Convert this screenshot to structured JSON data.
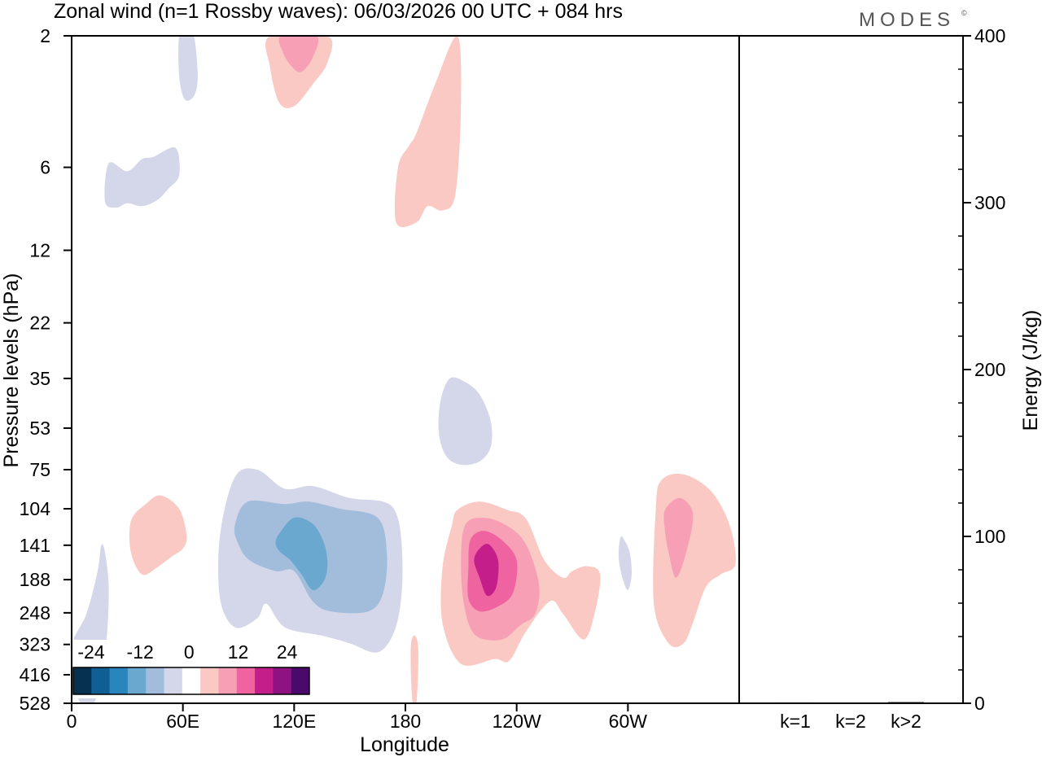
{
  "chart_data": {
    "type": "heatmap",
    "title": "Zonal wind (n=1 Rossby waves):  06/03/2026  00 UTC  + 084 hrs",
    "brand": "MODES",
    "brand_mark": "©",
    "xlabel": "Longitude",
    "ylabel": "Pressure levels (hPa)",
    "x_ticks": [
      {
        "lon": 0,
        "label": "0"
      },
      {
        "lon": 60,
        "label": "60E"
      },
      {
        "lon": 120,
        "label": "120E"
      },
      {
        "lon": 180,
        "label": "180"
      },
      {
        "lon": 240,
        "label": "120W"
      },
      {
        "lon": 300,
        "label": "60W"
      }
    ],
    "xlim": [
      0,
      360
    ],
    "pressure_levels": [
      "2",
      "6",
      "12",
      "22",
      "35",
      "53",
      "75",
      "104",
      "141",
      "188",
      "248",
      "323",
      "416",
      "528"
    ],
    "colorbar": {
      "tick_labels": [
        "-24",
        "-12",
        "0",
        "12",
        "24"
      ],
      "colors": [
        "#08304f",
        "#0f5f95",
        "#2b85bd",
        "#6aa8cf",
        "#a2bcdb",
        "#d4d6e9",
        "#ffffff",
        "#fbc9c3",
        "#f7a0b5",
        "#ef63a0",
        "#c41e8b",
        "#8e1282",
        "#4b0a6b"
      ]
    },
    "contours": [
      {
        "name": "neg-region-upper-a",
        "level": 1,
        "lon": [
          58,
          62,
          66,
          68,
          66,
          61,
          58
        ],
        "p": [
          2,
          1.8,
          2,
          2.8,
          3.3,
          3.4,
          2.8
        ]
      },
      {
        "name": "neg-region-upper-b",
        "level": 1,
        "lon": [
          20,
          30,
          38,
          44,
          56,
          58,
          52,
          46,
          38,
          30,
          24,
          18
        ],
        "p": [
          5.8,
          6.2,
          5.6,
          5.5,
          5.1,
          6.4,
          7.2,
          7.9,
          8.3,
          8.1,
          8.4,
          8.0
        ]
      },
      {
        "name": "neg-region-stratosphere",
        "level": 1,
        "lon": [
          204,
          212,
          220,
          226,
          226,
          220,
          210,
          202,
          198,
          199
        ],
        "p": [
          35,
          36,
          40,
          50,
          62,
          70,
          72,
          67,
          55,
          42
        ]
      },
      {
        "name": "neg-region-west-strip",
        "level": 1,
        "lon": [
          0,
          8,
          14,
          16,
          18,
          20,
          19,
          16,
          12,
          5,
          0
        ],
        "p": [
          323,
          250,
          175,
          141,
          150,
          200,
          300,
          420,
          528,
          528,
          420
        ]
      },
      {
        "name": "neg-region-east",
        "level": 1,
        "lon": [
          80,
          88,
          100,
          115,
          130,
          150,
          168,
          175,
          178,
          178,
          174,
          165,
          150,
          135,
          115,
          105,
          100,
          88,
          80
        ],
        "p": [
          130,
          80,
          75,
          88,
          86,
          95,
          98,
          108,
          140,
          210,
          290,
          345,
          320,
          300,
          280,
          230,
          260,
          280,
          220
        ]
      },
      {
        "name": "neg-region-east",
        "level": 2,
        "lon": [
          88,
          95,
          115,
          128,
          145,
          165,
          170,
          168,
          160,
          140,
          130,
          120,
          110,
          96,
          90
        ],
        "p": [
          120,
          98,
          100,
          98,
          104,
          112,
          150,
          210,
          245,
          245,
          225,
          175,
          175,
          160,
          140
        ]
      },
      {
        "name": "neg-region-east",
        "level": 3,
        "lon": [
          112,
          120,
          130,
          136,
          138,
          136,
          130,
          124,
          118,
          112,
          110
        ],
        "p": [
          128,
          112,
          118,
          138,
          165,
          190,
          205,
          180,
          160,
          148,
          138
        ]
      },
      {
        "name": "neg-region-small",
        "level": 1,
        "lon": [
          296,
          298,
          301,
          302,
          300,
          297,
          295
        ],
        "p": [
          132,
          135,
          150,
          180,
          205,
          185,
          155
        ]
      },
      {
        "name": "pos-region-top-a",
        "level": 1,
        "lon": [
          107,
          138,
          138,
          130,
          120,
          112,
          107
        ],
        "p": [
          2,
          2,
          2.5,
          3,
          3.6,
          3.5,
          2.6
        ]
      },
      {
        "name": "pos-region-top-a",
        "level": 2,
        "lon": [
          113,
          132,
          130,
          124,
          119,
          114
        ],
        "p": [
          2,
          2,
          2.4,
          2.7,
          2.6,
          2.3
        ]
      },
      {
        "name": "pos-region-top-b",
        "level": 1,
        "lon": [
          186,
          196,
          208,
          210,
          207,
          200,
          192,
          186,
          175,
          176,
          182
        ],
        "p": [
          4.5,
          3,
          2,
          3.5,
          7.5,
          8.6,
          8.3,
          9.5,
          9.5,
          6,
          5
        ]
      },
      {
        "name": "pos-region-west",
        "level": 1,
        "lon": [
          32,
          40,
          48,
          58,
          62,
          60,
          54,
          46,
          38,
          32
        ],
        "p": [
          115,
          100,
          93,
          104,
          130,
          145,
          155,
          170,
          180,
          150
        ]
      },
      {
        "name": "pos-region-dateline",
        "level": 1,
        "lon": [
          208,
          220,
          235,
          245,
          255,
          265,
          270,
          278,
          285,
          282,
          276,
          265,
          258,
          245,
          236,
          228,
          210,
          200,
          200,
          205
        ],
        "p": [
          105,
          98,
          105,
          113,
          160,
          185,
          175,
          168,
          180,
          250,
          310,
          250,
          225,
          290,
          370,
          365,
          380,
          270,
          170,
          120
        ]
      },
      {
        "name": "pos-region-dateline",
        "level": 2,
        "lon": [
          212,
          222,
          235,
          245,
          252,
          250,
          242,
          232,
          218,
          212,
          210
        ],
        "p": [
          120,
          112,
          120,
          140,
          195,
          250,
          275,
          310,
          300,
          240,
          170
        ]
      },
      {
        "name": "pos-region-dateline",
        "level": 3,
        "lon": [
          215,
          222,
          232,
          240,
          238,
          230,
          220,
          214,
          214
        ],
        "p": [
          135,
          125,
          135,
          160,
          210,
          235,
          245,
          220,
          170
        ]
      },
      {
        "name": "pos-region-dateline",
        "level": 4,
        "lon": [
          220,
          225,
          230,
          229,
          224,
          220,
          217
        ],
        "p": [
          145,
          140,
          160,
          200,
          215,
          185,
          160
        ]
      },
      {
        "name": "pos-region-east",
        "level": 1,
        "lon": [
          318,
          330,
          345,
          355,
          358,
          350,
          342,
          335,
          330,
          322,
          314,
          315
        ],
        "p": [
          82,
          78,
          90,
          120,
          165,
          180,
          200,
          270,
          320,
          320,
          230,
          105
        ]
      },
      {
        "name": "pos-region-east",
        "level": 2,
        "lon": [
          320,
          328,
          335,
          332,
          326,
          322,
          320
        ],
        "p": [
          105,
          95,
          108,
          145,
          185,
          150,
          125
        ]
      },
      {
        "name": "pos-region-south-streak",
        "level": 1,
        "lon": [
          183,
          185,
          187,
          186,
          184,
          183
        ],
        "p": [
          323,
          300,
          340,
          528,
          528,
          420
        ]
      }
    ],
    "energy_panel": {
      "ylabel": "Energy (J/kg)",
      "ylim": [
        0,
        400
      ],
      "y_ticks": [
        0,
        100,
        200,
        300,
        400
      ],
      "categories": [
        "k=1",
        "k=2",
        "k>2"
      ],
      "values": [
        0.5,
        0.3,
        0.7
      ]
    }
  }
}
